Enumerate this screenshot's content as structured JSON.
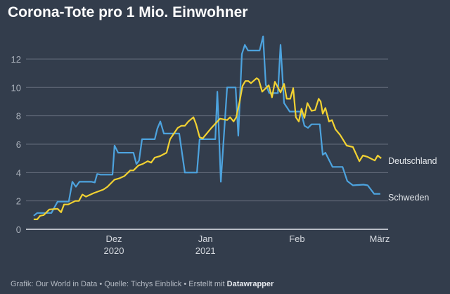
{
  "chart_data": {
    "type": "line",
    "title": "Corona-Tote pro 1 Mio. Einwohner",
    "xlabel": "",
    "ylabel": "",
    "x_unit": "days since 1 Nov 2020",
    "xlim": [
      0,
      122
    ],
    "ylim": [
      0,
      13.8
    ],
    "yticks": [
      0,
      2,
      4,
      6,
      8,
      10,
      12
    ],
    "xticks": [
      {
        "x": 30,
        "label": "Dez",
        "sublabel": "2020"
      },
      {
        "x": 61,
        "label": "Jan",
        "sublabel": "2021"
      },
      {
        "x": 92,
        "label": "Feb",
        "sublabel": ""
      },
      {
        "x": 120,
        "label": "März",
        "sublabel": ""
      }
    ],
    "grid": true,
    "legend": "direct labels at right end of lines",
    "series": [
      {
        "name": "Deutschland",
        "color": "#f2d232",
        "x": [
          3.3,
          4.5,
          5.5,
          6.7,
          8.6,
          11.4,
          12.6,
          13.6,
          15,
          17.4,
          18.6,
          19.8,
          21,
          23.6,
          26.9,
          28.3,
          30.7,
          32.4,
          34,
          36,
          37.1,
          38.8,
          40.2,
          41.9,
          43.1,
          44.3,
          46,
          48.3,
          49.5,
          52.1,
          53.3,
          54.5,
          55.7,
          57.4,
          58.3,
          59.5,
          60.5,
          63.3,
          66.4,
          68.8,
          69.8,
          71,
          71.9,
          73.1,
          74,
          75,
          76,
          76.9,
          78.8,
          79.5,
          80.7,
          82.9,
          84,
          85,
          86.9,
          88.1,
          89,
          90.2,
          91.2,
          92.1,
          93.1,
          94,
          95,
          96,
          97.4,
          98.6,
          99.8,
          100.5,
          101.2,
          102.1,
          103.3,
          104.3,
          105.5,
          107.1,
          109.3,
          111.4,
          113.6,
          114.8,
          116.4,
          118.8,
          119.8,
          121
        ],
        "values": [
          0.7,
          0.7,
          0.95,
          1.0,
          1.4,
          1.45,
          1.2,
          1.75,
          1.75,
          2.0,
          2.0,
          2.45,
          2.3,
          2.55,
          2.8,
          3.0,
          3.5,
          3.6,
          3.75,
          4.15,
          4.15,
          4.5,
          4.6,
          4.8,
          4.7,
          5.05,
          5.15,
          5.4,
          6.35,
          7.15,
          7.3,
          7.3,
          7.6,
          7.9,
          7.4,
          6.5,
          6.4,
          7.1,
          7.8,
          7.7,
          7.9,
          7.6,
          7.9,
          9.05,
          10.1,
          10.45,
          10.45,
          10.3,
          10.65,
          10.55,
          9.7,
          10.15,
          9.3,
          10.4,
          9.65,
          10.25,
          9.2,
          9.2,
          9.95,
          7.9,
          7.6,
          8.5,
          7.85,
          8.9,
          8.35,
          8.4,
          9.2,
          9.0,
          8.15,
          8.55,
          7.6,
          7.7,
          7.05,
          6.65,
          5.9,
          5.8,
          4.8,
          5.2,
          5.1,
          4.85,
          5.2,
          5.0
        ]
      },
      {
        "name": "Schweden",
        "color": "#4da3de",
        "x": [
          3.3,
          4.5,
          9.3,
          11.4,
          15.2,
          16.4,
          17.6,
          18.8,
          22.9,
          24,
          24.8,
          26,
          30,
          30.7,
          31.9,
          37.1,
          38.1,
          39,
          40,
          44.3,
          45.2,
          46.2,
          47.4,
          52.6,
          54.5,
          58.6,
          59.5,
          64.8,
          65.5,
          66.7,
          68.8,
          71.7,
          72.6,
          73.8,
          74.8,
          75.9,
          79.8,
          81,
          81.9,
          83.1,
          86,
          86.9,
          88.1,
          90,
          93.8,
          95,
          96.2,
          97.4,
          100.2,
          101.2,
          102.1,
          104.5,
          107.9,
          109.5,
          111.4,
          115,
          116.4,
          118.6,
          120.7
        ],
        "values": [
          0.95,
          1.15,
          1.15,
          1.95,
          1.95,
          3.35,
          3.0,
          3.35,
          3.35,
          3.3,
          3.9,
          3.85,
          3.85,
          5.9,
          5.4,
          5.4,
          4.6,
          4.85,
          6.35,
          6.35,
          7.1,
          7.6,
          6.75,
          6.75,
          4.0,
          4.0,
          6.35,
          6.35,
          9.7,
          3.35,
          10.0,
          10.0,
          6.6,
          12.35,
          13.0,
          12.6,
          12.6,
          13.6,
          10.2,
          9.6,
          9.6,
          13.0,
          8.9,
          8.3,
          8.3,
          7.3,
          7.15,
          7.4,
          7.4,
          5.25,
          5.4,
          4.4,
          4.4,
          3.4,
          3.1,
          3.15,
          3.1,
          2.5,
          2.5
        ]
      }
    ]
  },
  "footer": {
    "text": "Grafik: Our World in Data • Quelle: Tichys Einblick • Erstellt mit ",
    "brand": "Datawrapper"
  }
}
